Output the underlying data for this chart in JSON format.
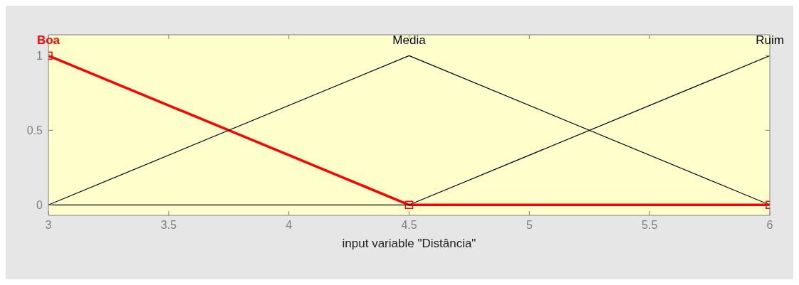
{
  "chart_data": {
    "type": "line",
    "xlabel": "input variable \"Distância\"",
    "xlim": [
      3,
      6
    ],
    "xticks": [
      3,
      3.5,
      4,
      4.5,
      5,
      5.5,
      6
    ],
    "ylim": [
      -0.07,
      1.14
    ],
    "yticks": [
      0,
      0.5,
      1
    ],
    "grid": false,
    "legend": false,
    "series": [
      {
        "name": "Boa",
        "color": "#ff0000",
        "x": [
          3,
          4.5,
          6
        ],
        "values": [
          1,
          0,
          0
        ],
        "marker": "square"
      },
      {
        "name": "Media",
        "color": "#000000",
        "x": [
          3,
          4.5,
          6
        ],
        "values": [
          0,
          1,
          0
        ]
      },
      {
        "name": "Ruim",
        "color": "#000000",
        "x": [
          3,
          4.5,
          6
        ],
        "values": [
          0,
          0,
          1
        ]
      }
    ]
  }
}
